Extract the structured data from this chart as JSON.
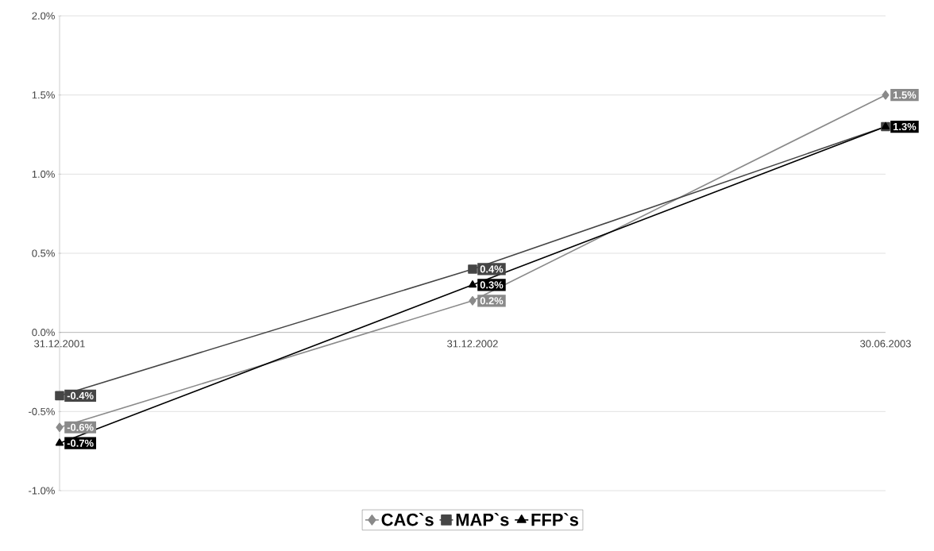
{
  "chart_data": {
    "type": "line",
    "categories": [
      "31.12.2001",
      "31.12.2002",
      "30.06.2003"
    ],
    "series": [
      {
        "name": "CAC`s",
        "color": "#8a8a8a",
        "marker": "diamond",
        "values": [
          -0.6,
          0.2,
          1.5
        ],
        "value_labels": [
          "-0.6%",
          "0.2%",
          "1.5%"
        ]
      },
      {
        "name": "MAP`s",
        "color": "#454545",
        "marker": "square",
        "values": [
          -0.4,
          0.4,
          1.3
        ],
        "value_labels": [
          "-0.4%",
          "0.4%",
          null
        ]
      },
      {
        "name": "FFP`s",
        "color": "#000000",
        "marker": "triangle",
        "values": [
          -0.7,
          0.3,
          1.3
        ],
        "value_labels": [
          "-0.7%",
          "0.3%",
          "1.3%"
        ]
      }
    ],
    "ylim": [
      -1.0,
      2.0
    ],
    "yticks": [
      {
        "value": -1.0,
        "label": "-1.0%"
      },
      {
        "value": -0.5,
        "label": "-0.5%"
      },
      {
        "value": 0.0,
        "label": "0.0%"
      },
      {
        "value": 0.5,
        "label": "0.5%"
      },
      {
        "value": 1.0,
        "label": "1.0%"
      },
      {
        "value": 1.5,
        "label": "1.5%"
      },
      {
        "value": 2.0,
        "label": "2.0%"
      }
    ],
    "grid": "y",
    "legend": "bottom"
  }
}
